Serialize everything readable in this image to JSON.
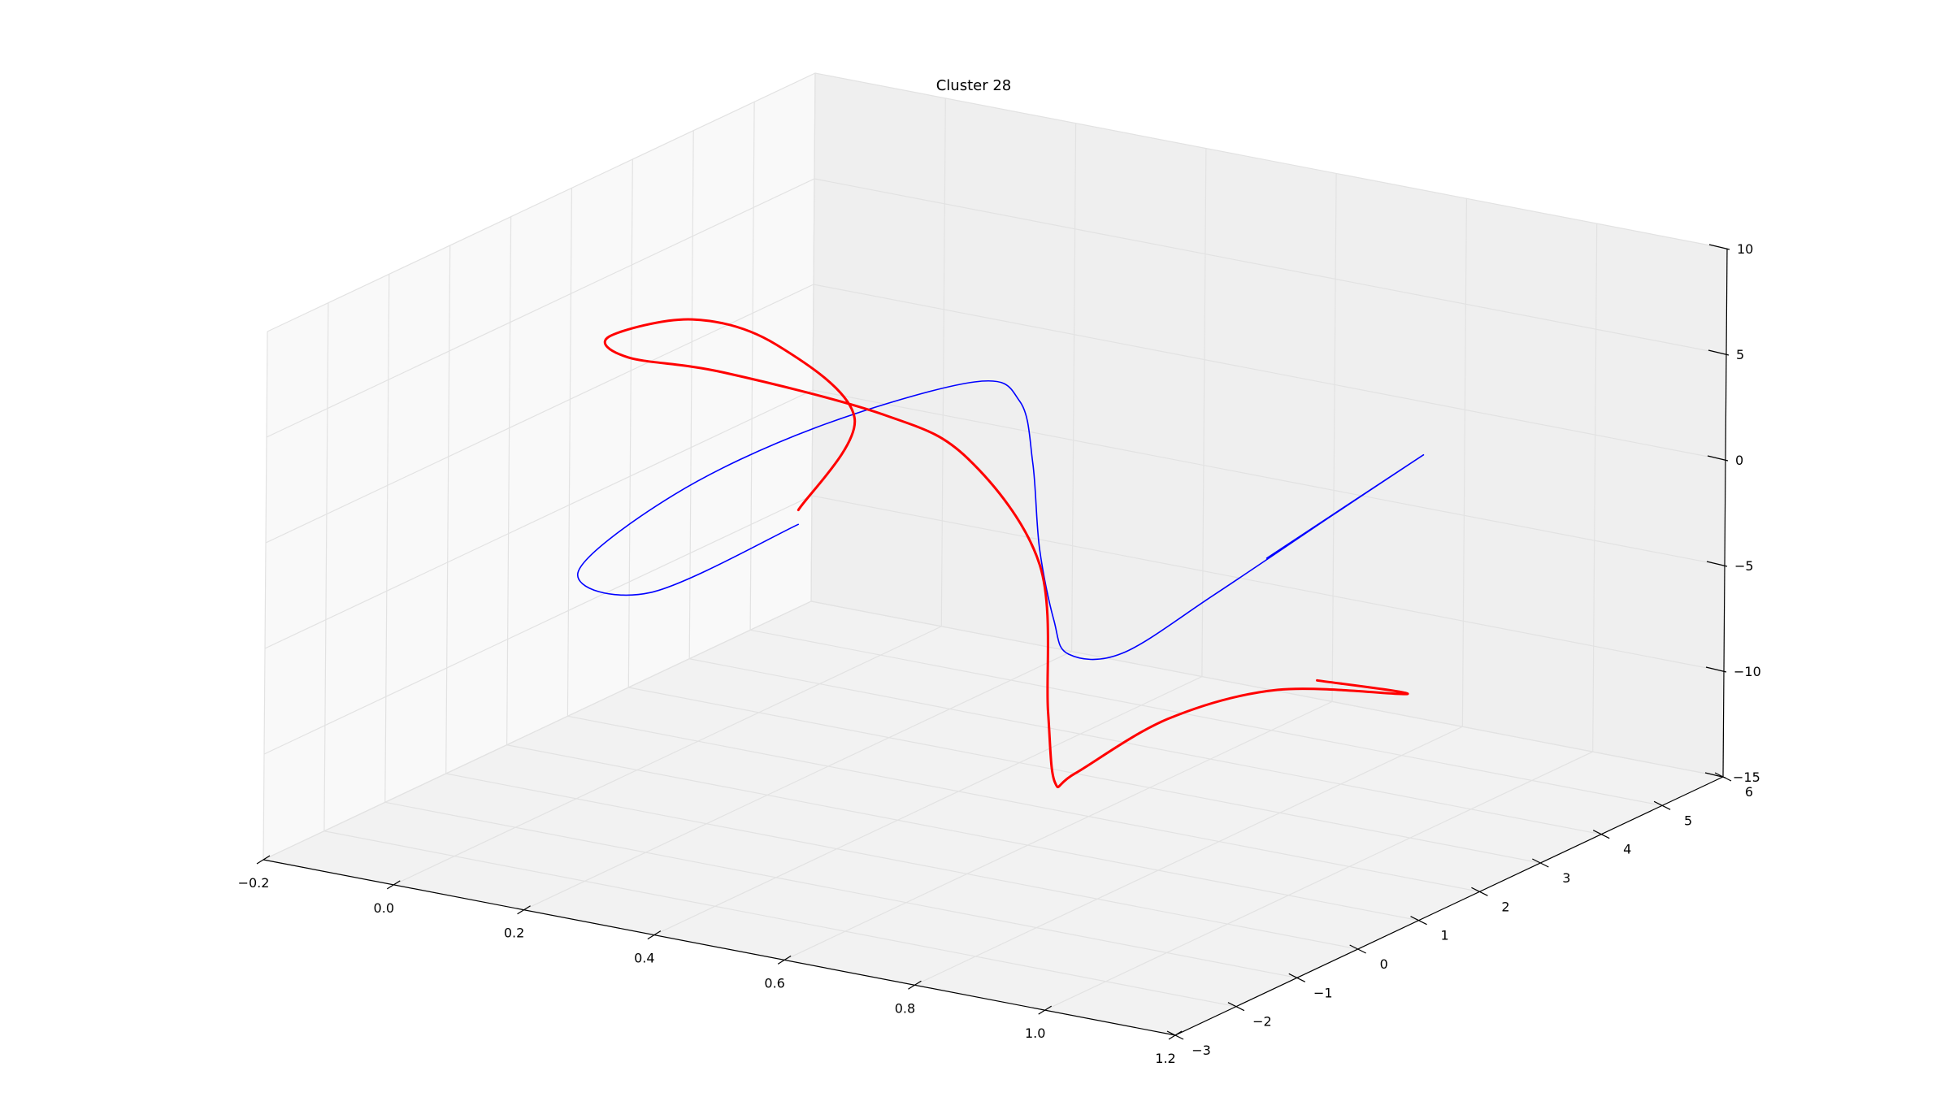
{
  "chart_data": {
    "type": "line",
    "projection": "3d",
    "title": "Cluster 28",
    "xlabel": "",
    "ylabel": "",
    "zlabel": "",
    "xlim": [
      -0.2,
      1.2
    ],
    "ylim": [
      -3,
      6
    ],
    "zlim": [
      -15,
      10
    ],
    "x_ticks": [
      "−0.2",
      "0.0",
      "0.2",
      "0.4",
      "0.6",
      "0.8",
      "1.0",
      "1.2"
    ],
    "y_ticks": [
      "−3",
      "−2",
      "−1",
      "0",
      "1",
      "2",
      "3",
      "4",
      "5",
      "6"
    ],
    "z_ticks": [
      "−15",
      "−10",
      "−5",
      "0",
      "5",
      "10"
    ],
    "grid": true,
    "legend": "none",
    "series": [
      {
        "color": "#0000ff",
        "points": [
          [
            0.3,
            0.4,
            -0.78
          ],
          [
            0.13,
            -0.2,
            -4.2
          ],
          [
            0.0,
            0.0,
            -4.3
          ],
          [
            0.1,
            0.5,
            -0.7
          ],
          [
            0.25,
            1.2,
            2.4
          ],
          [
            0.42,
            2.0,
            4.5
          ],
          [
            0.48,
            2.1,
            3.8
          ],
          [
            0.51,
            2.0,
            1.2
          ],
          [
            0.54,
            1.8,
            -2.4
          ],
          [
            0.6,
            1.4,
            -4.9
          ],
          [
            0.66,
            1.0,
            -5.6
          ],
          [
            0.78,
            0.6,
            -4.3
          ],
          [
            0.92,
            0.6,
            -0.7
          ],
          [
            1.08,
            0.8,
            3.7
          ],
          [
            1.2,
            1.0,
            7.0
          ],
          [
            1.0,
            0.6,
            1.5
          ]
        ]
      },
      {
        "color": "#ff0000",
        "points": [
          [
            0.3,
            0.4,
            -0.1
          ],
          [
            0.32,
            1.1,
            3.4
          ],
          [
            0.18,
            1.3,
            5.8
          ],
          [
            0.08,
            1.0,
            6.8
          ],
          [
            -0.02,
            0.7,
            5.8
          ],
          [
            0.0,
            0.8,
            4.8
          ],
          [
            0.1,
            1.3,
            4.0
          ],
          [
            0.3,
            1.8,
            2.5
          ],
          [
            0.42,
            1.9,
            1.0
          ],
          [
            0.55,
            1.7,
            -3.0
          ],
          [
            0.62,
            1.1,
            -8.7
          ],
          [
            0.65,
            0.9,
            -11.6
          ],
          [
            0.69,
            0.8,
            -10.8
          ],
          [
            0.85,
            0.6,
            -7.0
          ],
          [
            1.0,
            0.8,
            -5.0
          ],
          [
            1.18,
            1.0,
            -4.4
          ],
          [
            1.06,
            0.8,
            -4.2
          ]
        ]
      }
    ]
  }
}
